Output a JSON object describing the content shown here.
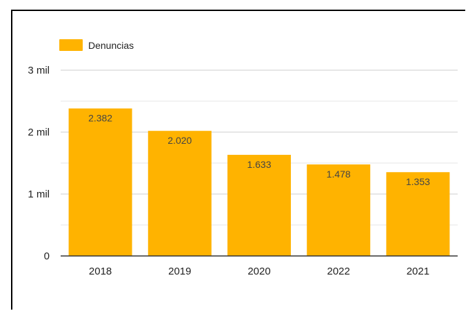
{
  "chart_data": {
    "type": "bar",
    "categories": [
      "2018",
      "2019",
      "2020",
      "2022",
      "2021"
    ],
    "series": [
      {
        "name": "Denuncias",
        "values": [
          2382,
          2020,
          1633,
          1478,
          1353
        ],
        "value_labels": [
          "2.382",
          "2.020",
          "1.633",
          "1.478",
          "1.353"
        ],
        "color": "#FFB300"
      }
    ],
    "y_ticks": [
      {
        "value": 0,
        "label": "0"
      },
      {
        "value": 1000,
        "label": "1 mil"
      },
      {
        "value": 2000,
        "label": "2 mil"
      },
      {
        "value": 3000,
        "label": "3 mil"
      }
    ],
    "ylim": [
      0,
      3000
    ],
    "minor_gridlines": [
      500,
      1500,
      2500
    ],
    "grid": true,
    "legend_position": "top-left",
    "title": "",
    "xlabel": "",
    "ylabel": ""
  }
}
